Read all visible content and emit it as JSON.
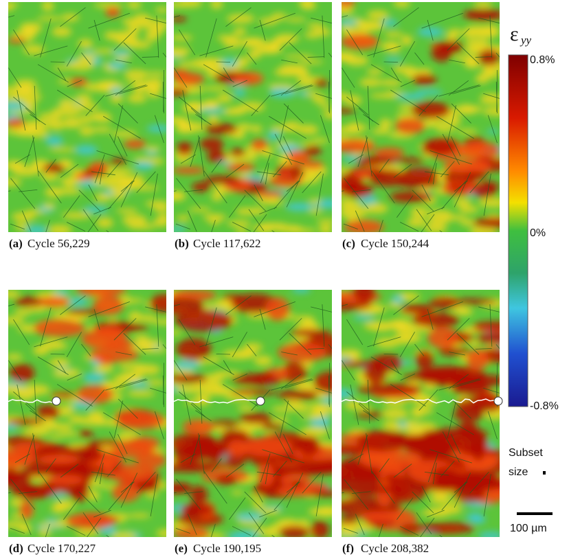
{
  "panels": [
    {
      "label": "(a)",
      "caption": "Cycle 56,229"
    },
    {
      "label": "(b)",
      "caption": "Cycle 117,622"
    },
    {
      "label": "(c)",
      "caption": "Cycle 150,244"
    },
    {
      "label": "(d)",
      "caption": "Cycle 170,227"
    },
    {
      "label": "(e)",
      "caption": "Cycle 190,195"
    },
    {
      "label": "(f)",
      "caption": "Cycle 208,382"
    }
  ],
  "colorbar": {
    "symbol": "ε",
    "subscript": "yy",
    "max_label": "0.8%",
    "mid_label": "0%",
    "min_label": "-0.8%"
  },
  "subset_label": [
    "Subset",
    "size"
  ],
  "scale_bar_label": "100 µm"
}
